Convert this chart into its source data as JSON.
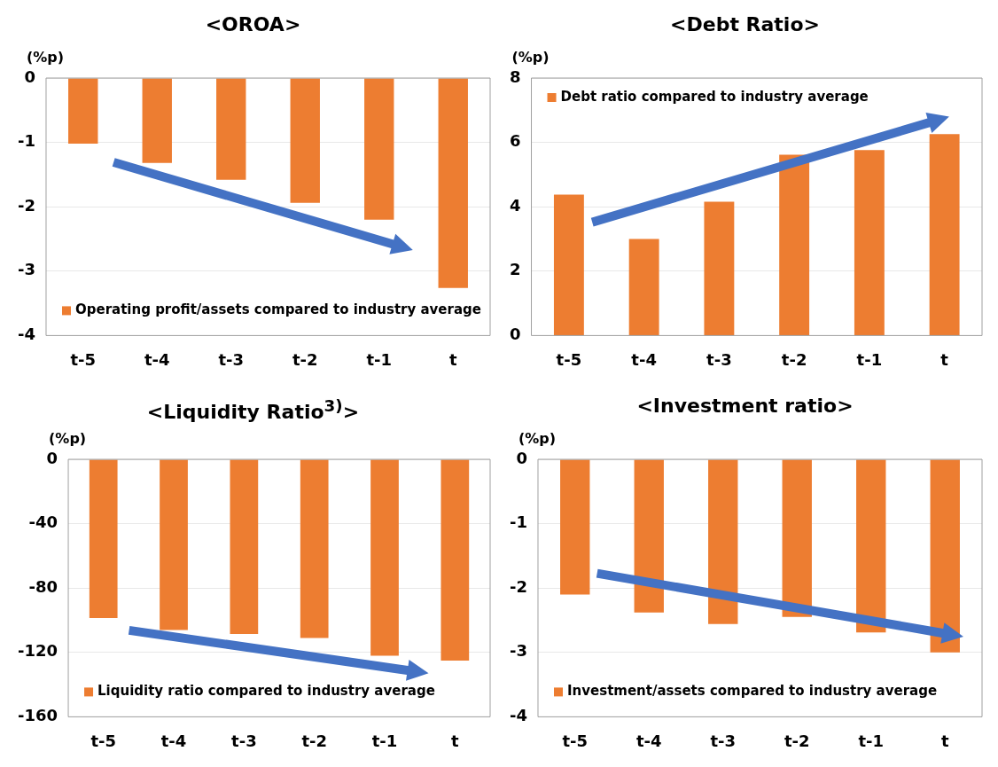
{
  "chart_data": [
    {
      "type": "bar",
      "title": "<OROA>",
      "ylabel": "(%p)",
      "categories": [
        "t-5",
        "t-4",
        "t-3",
        "t-2",
        "t-1",
        "t"
      ],
      "series": [
        {
          "name": "Operating profit/assets compared to industry average",
          "color": "#ed7d31",
          "values": [
            -1.02,
            -1.32,
            -1.58,
            -1.94,
            -2.2,
            -3.26
          ]
        }
      ],
      "ylim": [
        -4,
        0
      ],
      "yticks": [
        -4,
        -3,
        -2,
        -1,
        0
      ],
      "grid": "y",
      "legend": "bottom left"
    },
    {
      "type": "bar",
      "title": "<Debt Ratio>",
      "ylabel": "(%p)",
      "categories": [
        "t-5",
        "t-4",
        "t-3",
        "t-2",
        "t-1",
        "t"
      ],
      "series": [
        {
          "name": "Debt ratio compared to industry average",
          "color": "#ed7d31",
          "values": [
            4.38,
            3.0,
            4.16,
            5.62,
            5.76,
            6.26
          ]
        }
      ],
      "ylim": [
        0,
        8
      ],
      "yticks": [
        0,
        2,
        4,
        6,
        8
      ],
      "grid": "y",
      "legend": "top left"
    },
    {
      "type": "bar",
      "title": "<Liquidity Ratio$^{3)}$>",
      "ylabel": "(%p)",
      "categories": [
        "t-5",
        "t-4",
        "t-3",
        "t-2",
        "t-1",
        "t"
      ],
      "series": [
        {
          "name": "Liquidity ratio compared to industry average",
          "color": "#ed7d31",
          "values": [
            -98.6,
            -106,
            -108.5,
            -111,
            -122,
            -125
          ]
        }
      ],
      "ylim": [
        -160,
        0
      ],
      "yticks": [
        -160,
        -120,
        -80,
        -40,
        0
      ],
      "grid": "y",
      "legend": "bottom left"
    },
    {
      "type": "bar",
      "title": "<Investment ratio>",
      "ylabel": "(%p)",
      "categories": [
        "t-5",
        "t-4",
        "t-3",
        "t-2",
        "t-1",
        "t"
      ],
      "series": [
        {
          "name": "Investment/assets compared to industry average",
          "color": "#ed7d31",
          "values": [
            -2.1,
            -2.38,
            -2.56,
            -2.45,
            -2.69,
            -3.0
          ]
        }
      ],
      "ylim": [
        -4,
        0
      ],
      "yticks": [
        -4,
        -3,
        -2,
        -1,
        0
      ],
      "grid": "y",
      "legend": "bottom left"
    }
  ]
}
